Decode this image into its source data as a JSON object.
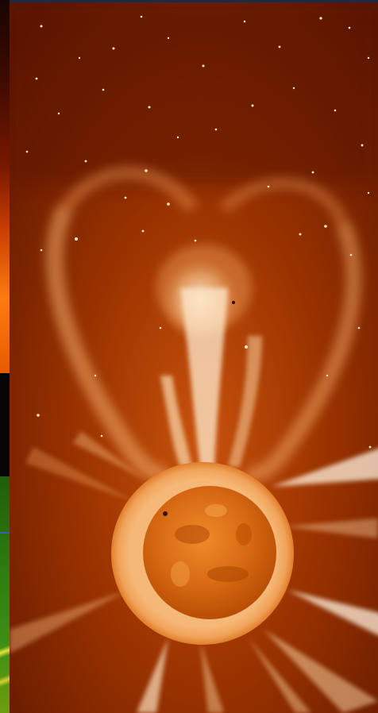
{
  "image": {
    "subject": "coronal-mass-ejection",
    "palette": {
      "background": "#8a2a00",
      "dark": "#3a0c00",
      "bright": "#fff2dc",
      "disk": "#d8660f",
      "rim": "#f3b06a"
    },
    "side_strip_colors": [
      "#c43a00",
      "#050505",
      "#2e7d10",
      "#e4e23a"
    ]
  }
}
